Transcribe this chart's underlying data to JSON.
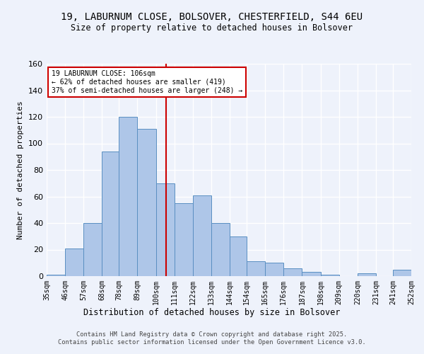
{
  "title_line1": "19, LABURNUM CLOSE, BOLSOVER, CHESTERFIELD, S44 6EU",
  "title_line2": "Size of property relative to detached houses in Bolsover",
  "xlabel": "Distribution of detached houses by size in Bolsover",
  "ylabel": "Number of detached properties",
  "bins": [
    35,
    46,
    57,
    68,
    78,
    89,
    100,
    111,
    122,
    133,
    144,
    154,
    165,
    176,
    187,
    198,
    209,
    220,
    231,
    241,
    252
  ],
  "bin_labels": [
    "35sqm",
    "46sqm",
    "57sqm",
    "68sqm",
    "78sqm",
    "89sqm",
    "100sqm",
    "111sqm",
    "122sqm",
    "133sqm",
    "144sqm",
    "154sqm",
    "165sqm",
    "176sqm",
    "187sqm",
    "198sqm",
    "209sqm",
    "220sqm",
    "231sqm",
    "241sqm",
    "252sqm"
  ],
  "counts": [
    1,
    21,
    40,
    94,
    120,
    111,
    70,
    55,
    61,
    40,
    30,
    11,
    10,
    6,
    3,
    1,
    0,
    2,
    0,
    5
  ],
  "bar_color": "#aec6e8",
  "bar_edge_color": "#5a8fc2",
  "property_value": 106,
  "vline_color": "#cc0000",
  "ylim": [
    0,
    160
  ],
  "yticks": [
    0,
    20,
    40,
    60,
    80,
    100,
    120,
    140,
    160
  ],
  "annotation_text": "19 LABURNUM CLOSE: 106sqm\n← 62% of detached houses are smaller (419)\n37% of semi-detached houses are larger (248) →",
  "annotation_box_color": "#ffffff",
  "annotation_box_edge": "#cc0000",
  "footer_line1": "Contains HM Land Registry data © Crown copyright and database right 2025.",
  "footer_line2": "Contains public sector information licensed under the Open Government Licence v3.0.",
  "background_color": "#eef2fb",
  "grid_color": "#ffffff"
}
